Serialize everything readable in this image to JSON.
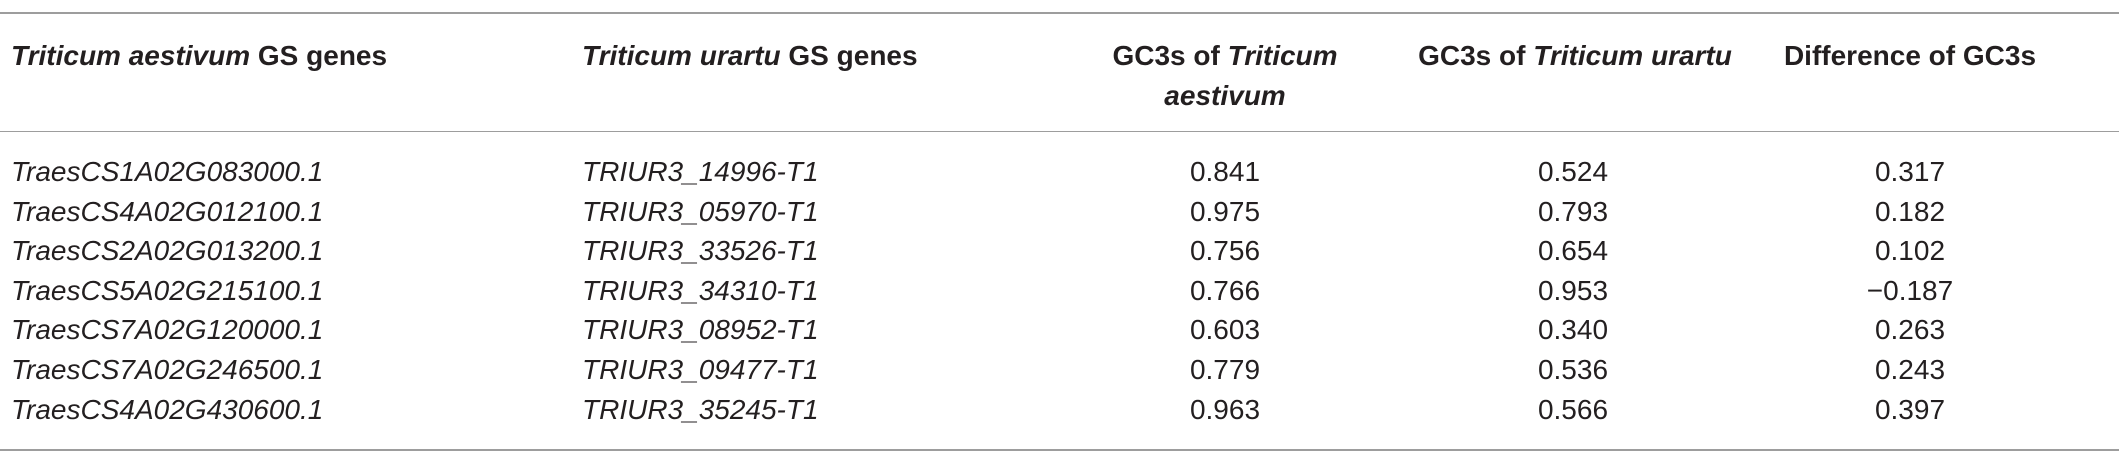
{
  "table": {
    "headers": {
      "col1_italic": "Triticum aestivum",
      "col1_rest": " GS genes",
      "col2_italic": "Triticum urartu",
      "col2_rest": " GS genes",
      "col3_prefix": "GC3s of ",
      "col3_italic_a": "Triticum",
      "col3_italic_b": "aestivum",
      "col4_prefix": "GC3s of ",
      "col4_italic": "Triticum urartu",
      "col5": "Difference of GC3s"
    },
    "rows": [
      {
        "ta_gene": "TraesCS1A02G083000.1",
        "tu_gene": "TRIUR3_14996-T1",
        "gc3s_ta": "0.841",
        "gc3s_tu": "0.524",
        "diff": "0.317"
      },
      {
        "ta_gene": "TraesCS4A02G012100.1",
        "tu_gene": "TRIUR3_05970-T1",
        "gc3s_ta": "0.975",
        "gc3s_tu": "0.793",
        "diff": "0.182"
      },
      {
        "ta_gene": "TraesCS2A02G013200.1",
        "tu_gene": "TRIUR3_33526-T1",
        "gc3s_ta": "0.756",
        "gc3s_tu": "0.654",
        "diff": "0.102"
      },
      {
        "ta_gene": "TraesCS5A02G215100.1",
        "tu_gene": "TRIUR3_34310-T1",
        "gc3s_ta": "0.766",
        "gc3s_tu": "0.953",
        "diff": "−0.187"
      },
      {
        "ta_gene": "TraesCS7A02G120000.1",
        "tu_gene": "TRIUR3_08952-T1",
        "gc3s_ta": "0.603",
        "gc3s_tu": "0.340",
        "diff": "0.263"
      },
      {
        "ta_gene": "TraesCS7A02G246500.1",
        "tu_gene": "TRIUR3_09477-T1",
        "gc3s_ta": "0.779",
        "gc3s_tu": "0.536",
        "diff": "0.243"
      },
      {
        "ta_gene": "TraesCS4A02G430600.1",
        "tu_gene": "TRIUR3_35245-T1",
        "gc3s_ta": "0.963",
        "gc3s_tu": "0.566",
        "diff": "0.397"
      }
    ]
  }
}
